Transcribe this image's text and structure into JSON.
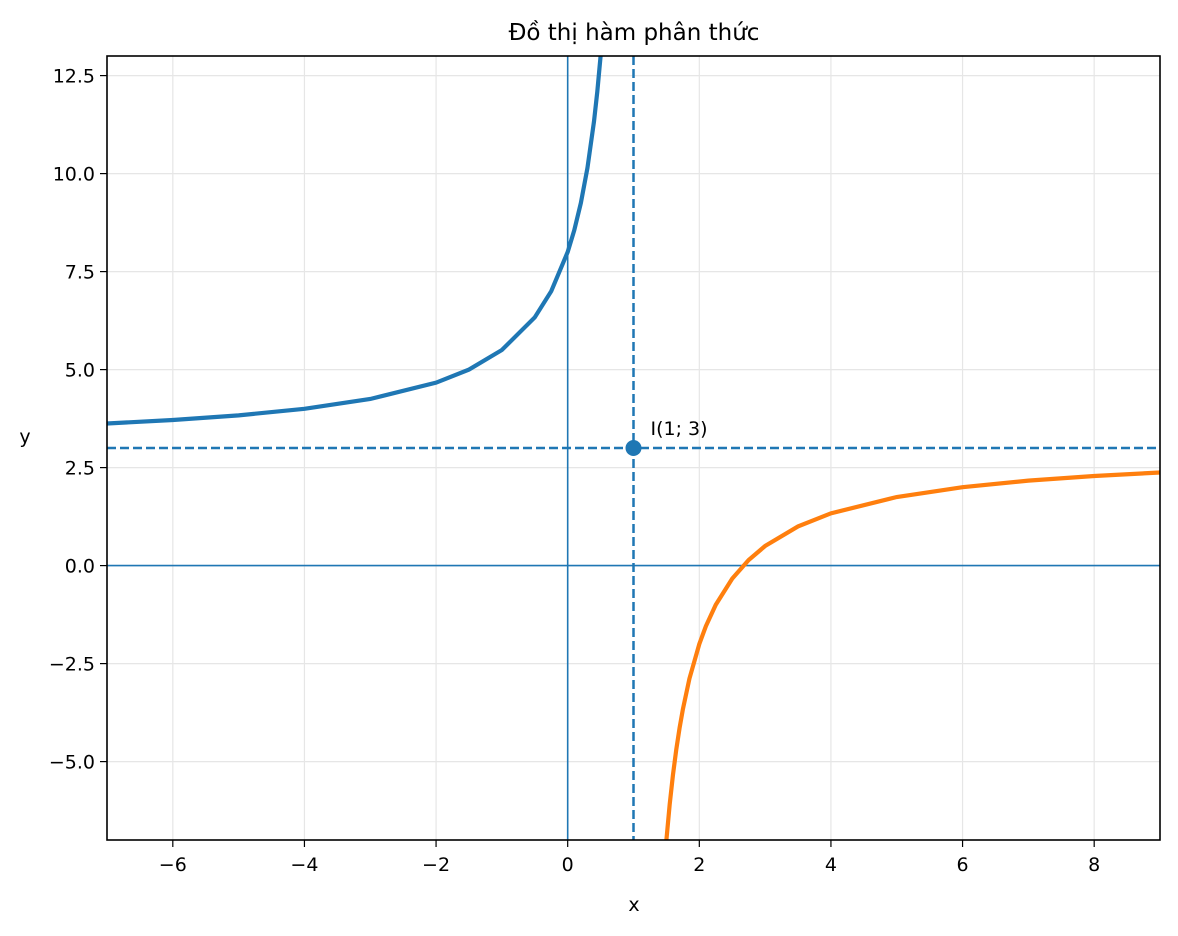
{
  "chart_data": {
    "type": "line",
    "title": "Đồ thị hàm phân thức",
    "x_label": "x",
    "y_label": "y",
    "xlim": [
      -7,
      9
    ],
    "ylim": [
      -7,
      13
    ],
    "xticks": [
      {
        "value": -6,
        "label": "−6"
      },
      {
        "value": -4,
        "label": "−4"
      },
      {
        "value": -2,
        "label": "−2"
      },
      0,
      2,
      4,
      6,
      8
    ],
    "yticks": [
      {
        "value": -5,
        "label": "−5.0"
      },
      {
        "value": -2.5,
        "label": "−2.5"
      },
      {
        "value": 0,
        "label": "0.0"
      },
      2.5,
      {
        "value": 5,
        "label": "5.0"
      },
      7.5,
      {
        "value": 10,
        "label": "10.0"
      },
      12.5
    ],
    "grid": true,
    "series": [
      {
        "color": "#1f77b4",
        "x": [
          -7,
          -6,
          -5,
          -4,
          -3,
          -2,
          -1.5,
          -1,
          -0.5,
          -0.25,
          0,
          0.1,
          0.2,
          0.3,
          0.4,
          0.45,
          0.5
        ],
        "values": [
          3.625,
          3.714,
          3.833,
          4.0,
          4.25,
          4.667,
          5.0,
          5.5,
          6.333,
          7.0,
          8.0,
          8.556,
          9.25,
          10.143,
          11.333,
          12.091,
          13.0
        ]
      },
      {
        "color": "#ff7f0e",
        "x": [
          1.5,
          1.55,
          1.6,
          1.65,
          1.7,
          1.75,
          1.85,
          2,
          2.1,
          2.25,
          2.5,
          2.75,
          3,
          3.5,
          4,
          5,
          6,
          7,
          8,
          9
        ],
        "values": [
          -7,
          -6.091,
          -5.333,
          -4.692,
          -4.143,
          -3.667,
          -2.882,
          -2,
          -1.545,
          -1,
          -0.333,
          0.143,
          0.5,
          1,
          1.333,
          1.75,
          2,
          2.167,
          2.286,
          2.375
        ]
      }
    ],
    "reference_lines": [
      {
        "orientation": "vertical",
        "value": 0,
        "style": "solid",
        "color": "#1f77b4"
      },
      {
        "orientation": "horizontal",
        "value": 0,
        "style": "solid",
        "color": "#1f77b4"
      },
      {
        "orientation": "vertical",
        "value": 1,
        "style": "dashed",
        "color": "#1f77b4"
      },
      {
        "orientation": "horizontal",
        "value": 3,
        "style": "dashed",
        "color": "#1f77b4"
      }
    ],
    "points": [
      {
        "x": 1,
        "y": 3,
        "label": "I(1; 3)",
        "color": "#1f77b4"
      }
    ]
  }
}
